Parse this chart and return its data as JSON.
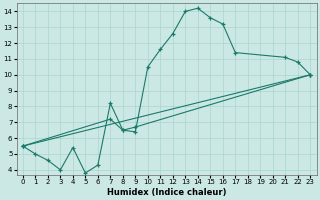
{
  "xlabel": "Humidex (Indice chaleur)",
  "bg_color": "#cce8e4",
  "grid_color": "#aad4cf",
  "line_color": "#1a7a6a",
  "xlim": [
    -0.5,
    23.5
  ],
  "ylim": [
    3.7,
    14.5
  ],
  "xticks": [
    0,
    1,
    2,
    3,
    4,
    5,
    6,
    7,
    8,
    9,
    10,
    11,
    12,
    13,
    14,
    15,
    16,
    17,
    18,
    19,
    20,
    21,
    22,
    23
  ],
  "yticks": [
    4,
    5,
    6,
    7,
    8,
    9,
    10,
    11,
    12,
    13,
    14
  ],
  "line1_x": [
    0,
    1,
    2,
    3,
    4,
    5,
    6,
    7,
    8,
    9,
    10,
    11,
    12,
    13,
    14,
    15,
    16,
    17,
    21,
    22,
    23
  ],
  "line1_y": [
    5.5,
    5.0,
    4.6,
    4.0,
    5.4,
    3.8,
    4.3,
    8.2,
    6.5,
    6.4,
    10.5,
    11.6,
    12.6,
    14.0,
    14.2,
    13.6,
    13.2,
    11.4,
    11.1,
    10.8,
    10.0
  ],
  "line2_x": [
    0,
    23
  ],
  "line2_y": [
    5.5,
    10.0
  ],
  "line3_x": [
    0,
    7,
    8,
    9,
    23
  ],
  "line3_y": [
    5.5,
    7.2,
    6.5,
    6.7,
    10.0
  ]
}
